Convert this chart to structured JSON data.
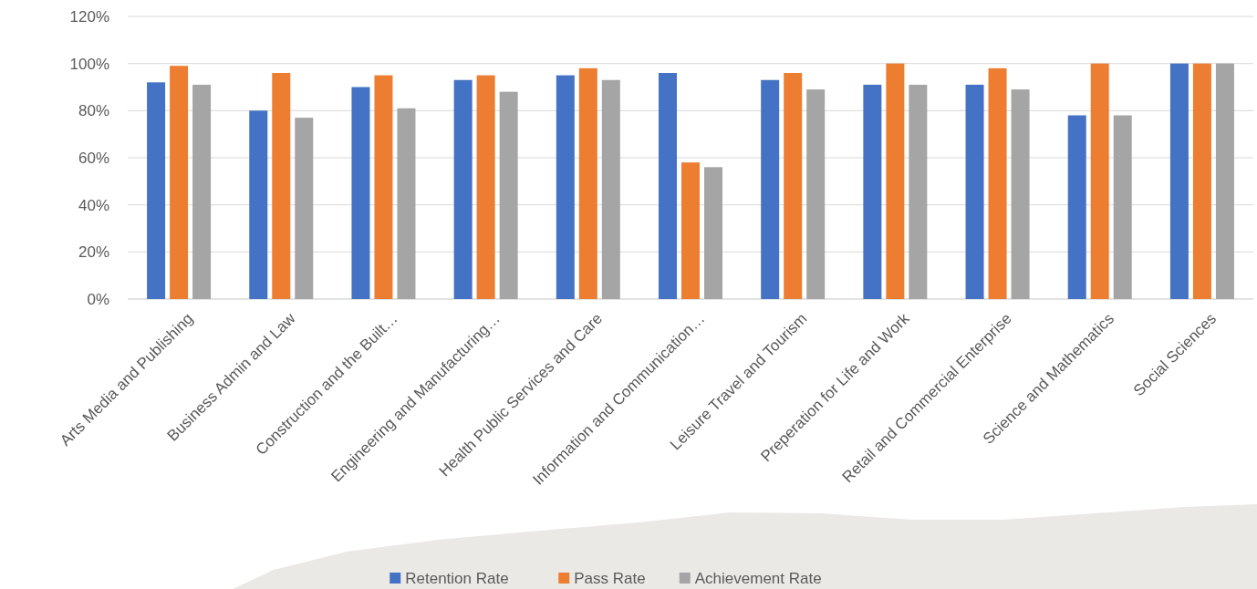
{
  "chart_data": {
    "type": "bar",
    "categories": [
      "Arts Media and Publishing",
      "Business Admin and Law",
      "Construction and the Built…",
      "Engineering and Manufacturing…",
      "Health Public Services and Care",
      "Information and Communication…",
      "Leisure Travel and Tourism",
      "Preperation for Life and Work",
      "Retail and Commercial Enterprise",
      "Science and Mathematics",
      "Social Sciences"
    ],
    "series": [
      {
        "name": "Retention Rate",
        "color": "#4472c4",
        "values": [
          92,
          80,
          90,
          93,
          95,
          96,
          93,
          91,
          91,
          78,
          100
        ]
      },
      {
        "name": "Pass Rate",
        "color": "#ed7d31",
        "values": [
          99,
          96,
          95,
          95,
          98,
          58,
          96,
          100,
          98,
          100,
          100
        ]
      },
      {
        "name": "Achievement Rate",
        "color": "#a5a5a5",
        "values": [
          91,
          77,
          81,
          88,
          93,
          56,
          89,
          91,
          89,
          78,
          100
        ]
      }
    ],
    "ylim": [
      0,
      120
    ],
    "yticks": [
      {
        "value": 0,
        "label": "0%"
      },
      {
        "value": 20,
        "label": "20%"
      },
      {
        "value": 40,
        "label": "40%"
      },
      {
        "value": 60,
        "label": "60%"
      },
      {
        "value": 80,
        "label": "80%"
      },
      {
        "value": 100,
        "label": "100%"
      },
      {
        "value": 120,
        "label": "120%"
      }
    ],
    "grid": "y",
    "legend": "bottom"
  }
}
